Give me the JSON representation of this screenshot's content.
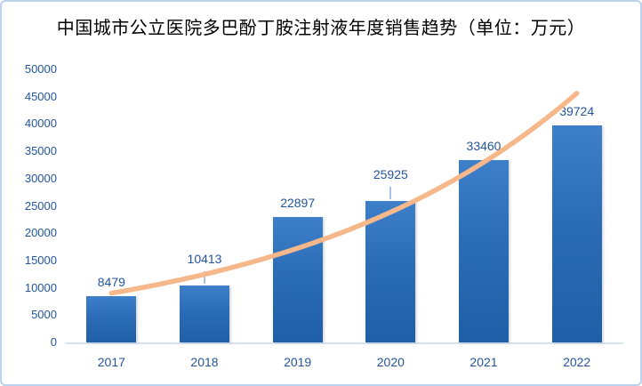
{
  "window": {
    "background": "#FFFFFF",
    "border_color": "#BCD1EB"
  },
  "chart_data": {
    "type": "bar",
    "title": "中国城市公立医院多巴酚丁胺注射液年度销售趋势（单位：万元）",
    "categories": [
      "2017",
      "2018",
      "2019",
      "2020",
      "2021",
      "2022"
    ],
    "values": [
      8479,
      10413,
      22897,
      25925,
      33460,
      39724
    ],
    "y_ticks": [
      0,
      5000,
      10000,
      15000,
      20000,
      25000,
      30000,
      35000,
      40000,
      45000,
      50000
    ],
    "ylim": [
      0,
      50000
    ],
    "xlabel": "",
    "ylabel": "",
    "gridlines": false,
    "legend": false,
    "data_labels_shown": true,
    "label_leader_lines": [
      false,
      true,
      false,
      true,
      false,
      false
    ],
    "trendline": {
      "type": "exponential",
      "color": "#F6B88A",
      "width": 5.5
    },
    "colors": {
      "bar_gradient_top": "#3E7FCA",
      "bar_gradient_bottom": "#1F5FA8",
      "axis_label": "#24559B",
      "data_label": "#24559B",
      "axis_line": "#D9E2F1",
      "leader_line": "#A8C4E5",
      "title": "#000000"
    }
  }
}
